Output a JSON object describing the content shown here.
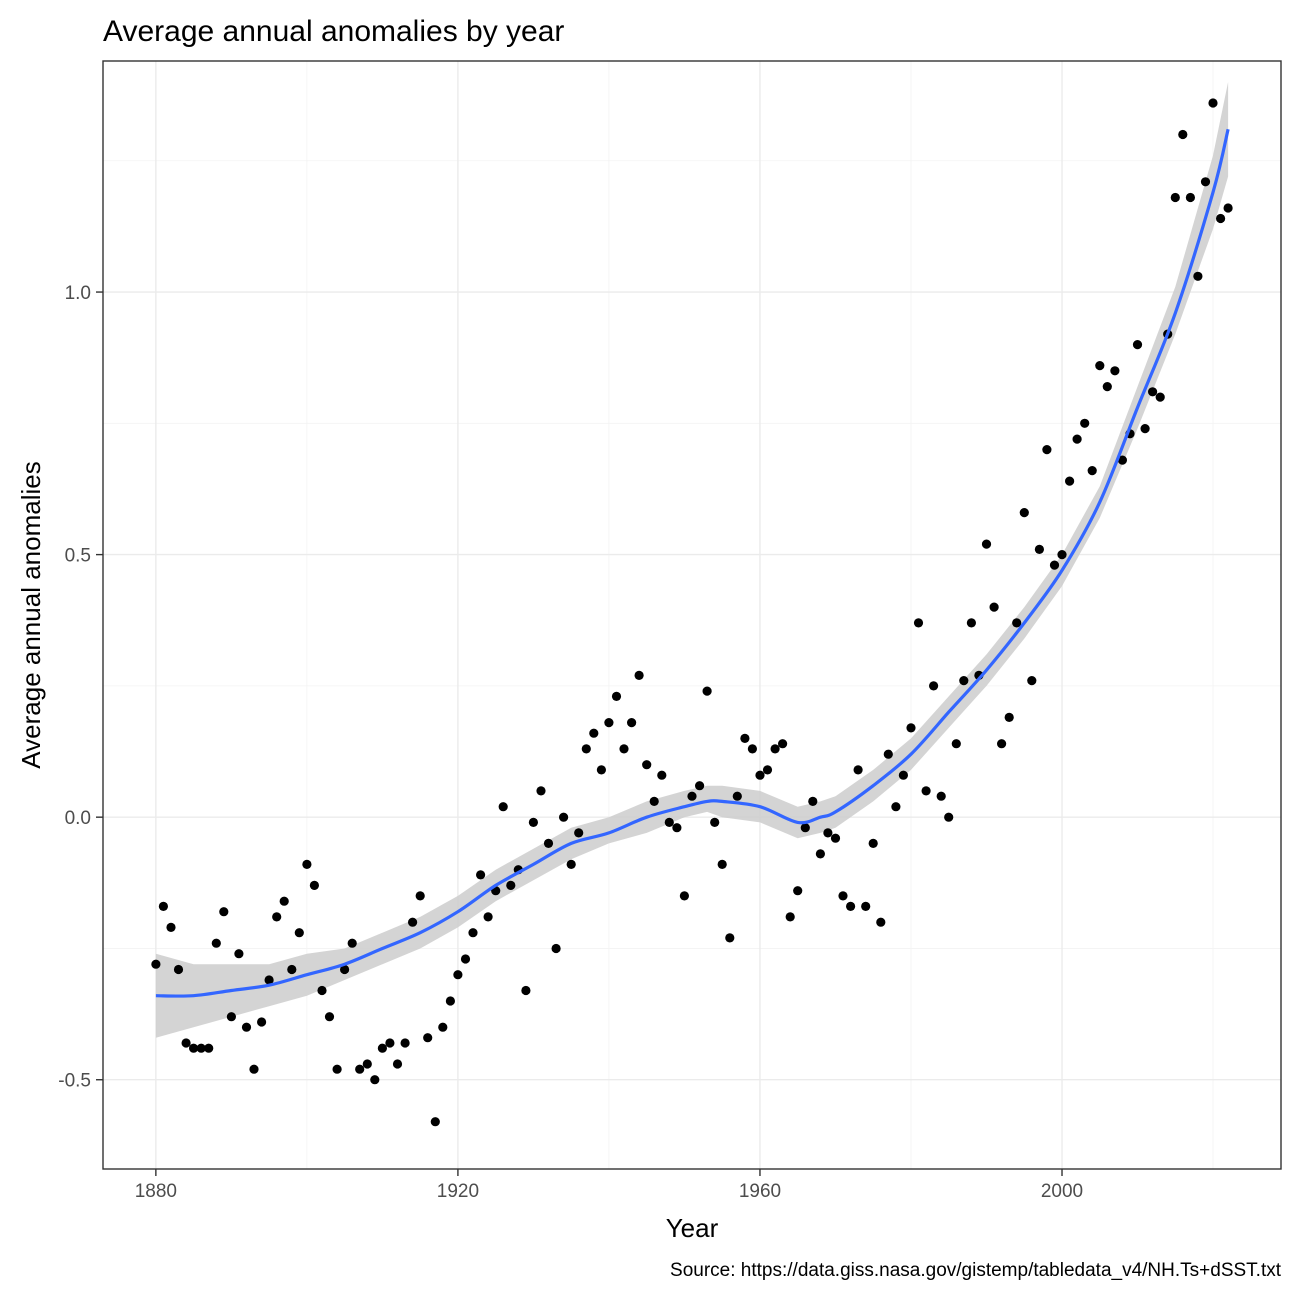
{
  "chart_data": {
    "type": "scatter",
    "title": "Average annual anomalies by year",
    "xlabel": "Year",
    "ylabel": "Average annual anomalies",
    "caption": "Source: https://data.giss.nasa.gov/gistemp/tabledata_v4/NH.Ts+dSST.txt",
    "xlim": [
      1873,
      2029
    ],
    "ylim": [
      -0.67,
      1.44
    ],
    "x_ticks": [
      1880,
      1920,
      1960,
      2000
    ],
    "x_tick_labels": [
      "1880",
      "1920",
      "1960",
      "2000"
    ],
    "y_ticks": [
      -0.5,
      0.0,
      0.5,
      1.0
    ],
    "y_tick_labels": [
      "-0.5",
      "0.0",
      "0.5",
      "1.0"
    ],
    "grid": true,
    "point_color": "#000000",
    "smooth_color": "#3366ff",
    "ribbon_color": "#cccccc",
    "series": [
      {
        "kind": "points",
        "x": [
          1880,
          1881,
          1882,
          1883,
          1884,
          1885,
          1886,
          1887,
          1888,
          1889,
          1890,
          1891,
          1892,
          1893,
          1894,
          1895,
          1896,
          1897,
          1898,
          1899,
          1900,
          1901,
          1902,
          1903,
          1904,
          1905,
          1906,
          1907,
          1908,
          1909,
          1910,
          1911,
          1912,
          1913,
          1914,
          1915,
          1916,
          1917,
          1918,
          1919,
          1920,
          1921,
          1922,
          1923,
          1924,
          1925,
          1926,
          1927,
          1928,
          1929,
          1930,
          1931,
          1932,
          1933,
          1934,
          1935,
          1936,
          1937,
          1938,
          1939,
          1940,
          1941,
          1942,
          1943,
          1944,
          1945,
          1946,
          1947,
          1948,
          1949,
          1950,
          1951,
          1952,
          1953,
          1954,
          1955,
          1956,
          1957,
          1958,
          1959,
          1960,
          1961,
          1962,
          1963,
          1964,
          1965,
          1966,
          1967,
          1968,
          1969,
          1970,
          1971,
          1972,
          1973,
          1974,
          1975,
          1976,
          1977,
          1978,
          1979,
          1980,
          1981,
          1982,
          1983,
          1984,
          1985,
          1986,
          1987,
          1988,
          1989,
          1990,
          1991,
          1992,
          1993,
          1994,
          1995,
          1996,
          1997,
          1998,
          1999,
          2000,
          2001,
          2002,
          2003,
          2004,
          2005,
          2006,
          2007,
          2008,
          2009,
          2010,
          2011,
          2012,
          2013,
          2014,
          2015,
          2016,
          2017,
          2018,
          2019,
          2020,
          2021,
          2022
        ],
        "y": [
          -0.28,
          -0.17,
          -0.21,
          -0.29,
          -0.43,
          -0.44,
          -0.44,
          -0.44,
          -0.24,
          -0.18,
          -0.38,
          -0.26,
          -0.4,
          -0.48,
          -0.39,
          -0.31,
          -0.19,
          -0.16,
          -0.29,
          -0.22,
          -0.09,
          -0.13,
          -0.33,
          -0.38,
          -0.48,
          -0.29,
          -0.24,
          -0.48,
          -0.47,
          -0.5,
          -0.44,
          -0.43,
          -0.47,
          -0.43,
          -0.2,
          -0.15,
          -0.42,
          -0.58,
          -0.4,
          -0.35,
          -0.3,
          -0.27,
          -0.22,
          -0.11,
          -0.19,
          -0.14,
          0.02,
          -0.13,
          -0.1,
          -0.33,
          -0.01,
          0.05,
          -0.05,
          -0.25,
          0.0,
          -0.09,
          -0.03,
          0.13,
          0.16,
          0.09,
          0.18,
          0.23,
          0.13,
          0.18,
          0.27,
          0.1,
          0.03,
          0.08,
          -0.01,
          -0.02,
          -0.15,
          0.04,
          0.06,
          0.24,
          -0.01,
          -0.09,
          -0.23,
          0.04,
          0.15,
          0.13,
          0.08,
          0.09,
          0.13,
          0.14,
          -0.19,
          -0.14,
          -0.02,
          0.03,
          -0.07,
          -0.03,
          -0.04,
          -0.15,
          -0.17,
          0.09,
          -0.17,
          -0.05,
          -0.2,
          0.12,
          0.02,
          0.08,
          0.17,
          0.37,
          0.05,
          0.25,
          0.04,
          0.0,
          0.14,
          0.26,
          0.37,
          0.27,
          0.52,
          0.4,
          0.14,
          0.19,
          0.37,
          0.58,
          0.26,
          0.51,
          0.7,
          0.48,
          0.5,
          0.64,
          0.72,
          0.75,
          0.66,
          0.86,
          0.82,
          0.85,
          0.68,
          0.73,
          0.9,
          0.74,
          0.81,
          0.8,
          0.92,
          1.18,
          1.3,
          1.18,
          1.03,
          1.21,
          1.36,
          1.14,
          1.16
        ]
      },
      {
        "kind": "smooth",
        "x": [
          1880,
          1885,
          1890,
          1895,
          1900,
          1905,
          1910,
          1915,
          1920,
          1925,
          1930,
          1935,
          1940,
          1945,
          1950,
          1953,
          1955,
          1960,
          1965,
          1968,
          1970,
          1975,
          1980,
          1985,
          1990,
          1995,
          2000,
          2005,
          2010,
          2015,
          2020,
          2022
        ],
        "y": [
          -0.34,
          -0.34,
          -0.33,
          -0.32,
          -0.3,
          -0.28,
          -0.25,
          -0.22,
          -0.18,
          -0.13,
          -0.09,
          -0.05,
          -0.03,
          0.0,
          0.02,
          0.03,
          0.03,
          0.02,
          -0.01,
          0.0,
          0.01,
          0.06,
          0.12,
          0.2,
          0.28,
          0.37,
          0.47,
          0.6,
          0.78,
          0.96,
          1.19,
          1.31
        ],
        "ci_lower": [
          -0.42,
          -0.4,
          -0.38,
          -0.36,
          -0.34,
          -0.31,
          -0.28,
          -0.25,
          -0.21,
          -0.16,
          -0.12,
          -0.08,
          -0.05,
          -0.03,
          0.0,
          0.01,
          0.0,
          -0.01,
          -0.04,
          -0.03,
          -0.02,
          0.03,
          0.09,
          0.17,
          0.25,
          0.34,
          0.44,
          0.57,
          0.74,
          0.92,
          1.12,
          1.22
        ],
        "ci_upper": [
          -0.26,
          -0.28,
          -0.28,
          -0.28,
          -0.26,
          -0.25,
          -0.22,
          -0.19,
          -0.15,
          -0.1,
          -0.06,
          -0.02,
          0.0,
          0.03,
          0.05,
          0.06,
          0.06,
          0.05,
          0.02,
          0.03,
          0.04,
          0.09,
          0.15,
          0.23,
          0.31,
          0.4,
          0.5,
          0.63,
          0.82,
          1.01,
          1.26,
          1.4
        ]
      }
    ]
  }
}
